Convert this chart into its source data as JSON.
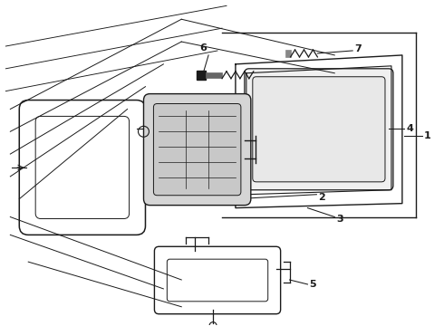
{
  "bg_color": "#ffffff",
  "line_color": "#1a1a1a",
  "label_color": "#000000",
  "figsize": [
    4.9,
    3.6
  ],
  "dpi": 100,
  "label_fontsize": 8
}
